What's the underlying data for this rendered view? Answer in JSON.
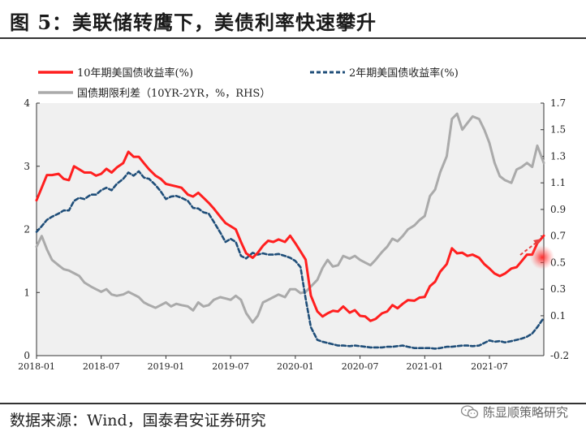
{
  "header": {
    "title": "图 5：美联储转鹰下，美债利率快速攀升"
  },
  "footer": {
    "source": "数据来源：Wind，国泰君安证券研究",
    "watermark": "陈显顺策略研究"
  },
  "colors": {
    "ten_year": "#ff1f1f",
    "two_year": "#1f4e79",
    "spread": "#aaaaaa",
    "plot_bg": "#f0f0f0"
  },
  "chart_data": {
    "type": "line",
    "title": "美联储转鹰下，美债利率快速攀升",
    "xlabel": "",
    "ylabel": "",
    "x_ticks": [
      "2018-01",
      "2018-07",
      "2019-01",
      "2019-07",
      "2020-01",
      "2020-07",
      "2021-01",
      "2021-07"
    ],
    "y_left": {
      "lim": [
        0,
        4
      ],
      "ticks": [
        "0",
        "1",
        "2",
        "3",
        "4"
      ]
    },
    "y_right": {
      "lim": [
        -0.2,
        1.7
      ],
      "ticks": [
        "-0.2",
        "0.1",
        "0.3",
        "0.5",
        "0.7",
        "0.9",
        "1.1",
        "1.3",
        "1.5",
        "1.7"
      ]
    },
    "x_range": [
      2018.0,
      2021.92
    ],
    "legend": {
      "placement": "top"
    },
    "series": [
      {
        "name": "10年期美国债收益率(%)",
        "axis": "left",
        "style": "solid",
        "x": [
          2018.0,
          2018.04,
          2018.08,
          2018.12,
          2018.17,
          2018.21,
          2018.25,
          2018.29,
          2018.33,
          2018.37,
          2018.42,
          2018.46,
          2018.5,
          2018.54,
          2018.58,
          2018.62,
          2018.67,
          2018.71,
          2018.75,
          2018.79,
          2018.83,
          2018.87,
          2018.92,
          2018.96,
          2019.0,
          2019.04,
          2019.08,
          2019.12,
          2019.17,
          2019.21,
          2019.25,
          2019.29,
          2019.33,
          2019.37,
          2019.42,
          2019.46,
          2019.5,
          2019.54,
          2019.58,
          2019.62,
          2019.67,
          2019.71,
          2019.75,
          2019.79,
          2019.83,
          2019.87,
          2019.92,
          2019.96,
          2020.0,
          2020.04,
          2020.08,
          2020.12,
          2020.17,
          2020.21,
          2020.25,
          2020.29,
          2020.33,
          2020.37,
          2020.42,
          2020.46,
          2020.5,
          2020.54,
          2020.58,
          2020.62,
          2020.67,
          2020.71,
          2020.75,
          2020.79,
          2020.83,
          2020.87,
          2020.92,
          2020.96,
          2021.0,
          2021.04,
          2021.08,
          2021.12,
          2021.17,
          2021.21,
          2021.25,
          2021.29,
          2021.33,
          2021.37,
          2021.42,
          2021.46,
          2021.5,
          2021.54,
          2021.58,
          2021.62,
          2021.67,
          2021.71,
          2021.75,
          2021.79,
          2021.83,
          2021.87,
          2021.92
        ],
        "values": [
          2.46,
          2.66,
          2.86,
          2.86,
          2.88,
          2.8,
          2.78,
          3.0,
          2.95,
          2.9,
          2.9,
          2.85,
          2.88,
          2.96,
          2.9,
          2.98,
          3.05,
          3.23,
          3.15,
          3.15,
          3.05,
          2.95,
          2.85,
          2.8,
          2.72,
          2.7,
          2.68,
          2.66,
          2.55,
          2.52,
          2.58,
          2.5,
          2.42,
          2.33,
          2.2,
          2.1,
          2.05,
          2.0,
          1.8,
          1.62,
          1.55,
          1.63,
          1.74,
          1.82,
          1.8,
          1.84,
          1.8,
          1.9,
          1.78,
          1.65,
          1.52,
          0.95,
          0.7,
          0.62,
          0.67,
          0.71,
          0.7,
          0.78,
          0.68,
          0.72,
          0.63,
          0.62,
          0.55,
          0.58,
          0.67,
          0.7,
          0.8,
          0.75,
          0.82,
          0.88,
          0.87,
          0.92,
          0.93,
          1.1,
          1.17,
          1.33,
          1.45,
          1.7,
          1.62,
          1.63,
          1.58,
          1.6,
          1.55,
          1.45,
          1.38,
          1.3,
          1.26,
          1.3,
          1.38,
          1.4,
          1.5,
          1.6,
          1.6,
          1.78,
          1.9
        ]
      },
      {
        "name": "2年期美国债收益率(%)",
        "axis": "left",
        "style": "dashed",
        "x": [
          2018.0,
          2018.04,
          2018.08,
          2018.12,
          2018.17,
          2018.21,
          2018.25,
          2018.29,
          2018.33,
          2018.37,
          2018.42,
          2018.46,
          2018.5,
          2018.54,
          2018.58,
          2018.62,
          2018.67,
          2018.71,
          2018.75,
          2018.79,
          2018.83,
          2018.87,
          2018.92,
          2018.96,
          2019.0,
          2019.04,
          2019.08,
          2019.12,
          2019.17,
          2019.21,
          2019.25,
          2019.29,
          2019.33,
          2019.37,
          2019.42,
          2019.46,
          2019.5,
          2019.54,
          2019.58,
          2019.62,
          2019.67,
          2019.71,
          2019.75,
          2019.79,
          2019.83,
          2019.87,
          2019.92,
          2019.96,
          2020.0,
          2020.04,
          2020.08,
          2020.12,
          2020.17,
          2020.21,
          2020.25,
          2020.29,
          2020.33,
          2020.37,
          2020.42,
          2020.46,
          2020.5,
          2020.54,
          2020.58,
          2020.62,
          2020.67,
          2020.71,
          2020.75,
          2020.79,
          2020.83,
          2020.87,
          2020.92,
          2020.96,
          2021.0,
          2021.04,
          2021.08,
          2021.12,
          2021.17,
          2021.21,
          2021.25,
          2021.29,
          2021.33,
          2021.37,
          2021.42,
          2021.46,
          2021.5,
          2021.54,
          2021.58,
          2021.62,
          2021.67,
          2021.71,
          2021.75,
          2021.79,
          2021.83,
          2021.87,
          2021.92
        ],
        "values": [
          1.96,
          2.05,
          2.15,
          2.2,
          2.25,
          2.3,
          2.3,
          2.45,
          2.5,
          2.48,
          2.55,
          2.55,
          2.62,
          2.66,
          2.62,
          2.72,
          2.8,
          2.9,
          2.85,
          2.92,
          2.82,
          2.8,
          2.7,
          2.6,
          2.48,
          2.52,
          2.53,
          2.5,
          2.45,
          2.34,
          2.33,
          2.27,
          2.25,
          2.12,
          1.95,
          1.8,
          1.85,
          1.8,
          1.58,
          1.54,
          1.63,
          1.6,
          1.62,
          1.6,
          1.6,
          1.61,
          1.58,
          1.55,
          1.5,
          1.4,
          0.9,
          0.45,
          0.25,
          0.22,
          0.2,
          0.18,
          0.16,
          0.16,
          0.15,
          0.16,
          0.15,
          0.14,
          0.13,
          0.13,
          0.13,
          0.14,
          0.14,
          0.15,
          0.16,
          0.14,
          0.12,
          0.12,
          0.12,
          0.12,
          0.11,
          0.12,
          0.14,
          0.14,
          0.15,
          0.16,
          0.16,
          0.15,
          0.16,
          0.2,
          0.24,
          0.22,
          0.23,
          0.21,
          0.23,
          0.25,
          0.27,
          0.3,
          0.35,
          0.45,
          0.6
        ]
      },
      {
        "name": "国债期限利差（10YR-2YR，%，RHS）",
        "axis": "right",
        "style": "solid",
        "x": [
          2018.0,
          2018.04,
          2018.08,
          2018.12,
          2018.17,
          2018.21,
          2018.25,
          2018.29,
          2018.33,
          2018.37,
          2018.42,
          2018.46,
          2018.5,
          2018.54,
          2018.58,
          2018.62,
          2018.67,
          2018.71,
          2018.75,
          2018.79,
          2018.83,
          2018.87,
          2018.92,
          2018.96,
          2019.0,
          2019.04,
          2019.08,
          2019.12,
          2019.17,
          2019.21,
          2019.25,
          2019.29,
          2019.33,
          2019.37,
          2019.42,
          2019.46,
          2019.5,
          2019.54,
          2019.58,
          2019.62,
          2019.67,
          2019.71,
          2019.75,
          2019.79,
          2019.83,
          2019.87,
          2019.92,
          2019.96,
          2020.0,
          2020.04,
          2020.08,
          2020.12,
          2020.17,
          2020.21,
          2020.25,
          2020.29,
          2020.33,
          2020.37,
          2020.42,
          2020.46,
          2020.5,
          2020.54,
          2020.58,
          2020.62,
          2020.67,
          2020.71,
          2020.75,
          2020.79,
          2020.83,
          2020.87,
          2020.92,
          2020.96,
          2021.0,
          2021.04,
          2021.08,
          2021.12,
          2021.17,
          2021.21,
          2021.25,
          2021.29,
          2021.33,
          2021.37,
          2021.42,
          2021.46,
          2021.5,
          2021.54,
          2021.58,
          2021.62,
          2021.67,
          2021.71,
          2021.75,
          2021.79,
          2021.83,
          2021.87,
          2021.92
        ],
        "values": [
          0.62,
          0.7,
          0.6,
          0.52,
          0.48,
          0.45,
          0.44,
          0.42,
          0.4,
          0.35,
          0.32,
          0.3,
          0.28,
          0.3,
          0.26,
          0.25,
          0.26,
          0.28,
          0.26,
          0.24,
          0.2,
          0.18,
          0.16,
          0.18,
          0.2,
          0.17,
          0.19,
          0.18,
          0.17,
          0.14,
          0.2,
          0.17,
          0.18,
          0.22,
          0.24,
          0.23,
          0.22,
          0.25,
          0.22,
          0.12,
          0.05,
          0.1,
          0.2,
          0.22,
          0.24,
          0.26,
          0.24,
          0.3,
          0.3,
          0.27,
          0.28,
          0.32,
          0.37,
          0.46,
          0.52,
          0.47,
          0.48,
          0.55,
          0.53,
          0.55,
          0.52,
          0.5,
          0.48,
          0.52,
          0.58,
          0.62,
          0.68,
          0.66,
          0.7,
          0.75,
          0.78,
          0.82,
          0.85,
          1.0,
          1.05,
          1.18,
          1.3,
          1.58,
          1.62,
          1.5,
          1.55,
          1.6,
          1.58,
          1.5,
          1.4,
          1.25,
          1.15,
          1.12,
          1.1,
          1.2,
          1.22,
          1.25,
          1.22,
          1.38,
          1.25
        ]
      }
    ]
  }
}
